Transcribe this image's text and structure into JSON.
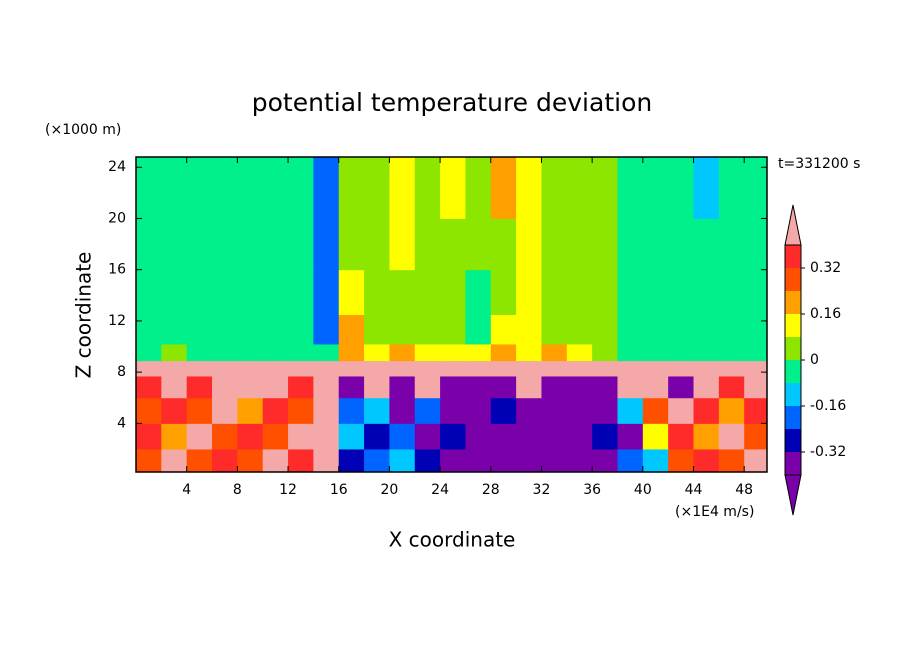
{
  "chart_data": {
    "type": "contour",
    "title": "potential temperature deviation",
    "xlabel": "X coordinate",
    "ylabel": "Z coordinate",
    "xunit": "(×1E4 m/s)",
    "yunit": "(×1000 m)",
    "annotation": "t=331200 s",
    "xlim": [
      0,
      49.8
    ],
    "ylim": [
      0.2,
      24.8
    ],
    "xticks": [
      4,
      8,
      12,
      16,
      20,
      24,
      28,
      32,
      36,
      40,
      44,
      48
    ],
    "yticks": [
      4,
      8,
      12,
      16,
      20,
      24
    ],
    "x": [
      1,
      3,
      5,
      7,
      9,
      11,
      13,
      15,
      17,
      19,
      21,
      23,
      25,
      27,
      29,
      31,
      33,
      35,
      37,
      39,
      41,
      43,
      45,
      47,
      49
    ],
    "y": [
      1,
      3,
      5,
      7,
      8.4,
      9.4,
      11,
      14,
      18,
      22
    ],
    "z": [
      [
        0.3,
        0.42,
        0.28,
        0.36,
        0.3,
        0.42,
        0.36,
        0.42,
        -0.3,
        -0.2,
        -0.1,
        -0.3,
        -0.45,
        -0.45,
        -0.45,
        -0.45,
        -0.45,
        -0.45,
        -0.45,
        -0.2,
        -0.1,
        0.3,
        0.36,
        0.28,
        0.42
      ],
      [
        0.36,
        0.2,
        0.42,
        0.3,
        0.36,
        0.28,
        0.42,
        0.42,
        -0.1,
        -0.3,
        -0.2,
        -0.45,
        -0.3,
        -0.45,
        -0.45,
        -0.45,
        -0.45,
        -0.45,
        -0.3,
        -0.45,
        0.1,
        0.36,
        0.2,
        0.42,
        0.3
      ],
      [
        0.28,
        0.36,
        0.3,
        0.42,
        0.2,
        0.36,
        0.3,
        0.42,
        -0.2,
        -0.1,
        -0.45,
        -0.2,
        -0.45,
        -0.45,
        -0.3,
        -0.45,
        -0.45,
        -0.45,
        -0.45,
        -0.1,
        0.3,
        0.42,
        0.36,
        0.2,
        0.36
      ],
      [
        0.36,
        0.42,
        0.36,
        0.42,
        0.42,
        0.42,
        0.36,
        0.42,
        -0.45,
        0.42,
        -0.45,
        0.42,
        -0.45,
        -0.45,
        -0.45,
        0.42,
        -0.45,
        -0.45,
        -0.45,
        0.42,
        0.42,
        -0.45,
        0.42,
        0.36,
        0.42
      ],
      [
        0.42,
        0.42,
        0.42,
        0.42,
        0.42,
        0.42,
        0.42,
        0.42,
        0.42,
        0.42,
        0.42,
        0.42,
        0.42,
        0.42,
        0.42,
        0.42,
        0.42,
        0.42,
        0.42,
        0.42,
        0.42,
        0.42,
        0.42,
        0.42,
        0.42
      ],
      [
        -0.04,
        0.04,
        -0.04,
        -0.04,
        -0.04,
        -0.04,
        -0.04,
        -0.04,
        0.2,
        0.12,
        0.2,
        0.12,
        0.12,
        0.12,
        0.2,
        0.12,
        0.2,
        0.12,
        0.04,
        -0.04,
        -0.04,
        -0.04,
        -0.04,
        -0.04,
        -0.04
      ],
      [
        -0.04,
        -0.04,
        -0.04,
        -0.04,
        -0.04,
        -0.04,
        -0.04,
        -0.2,
        0.2,
        0.04,
        0.04,
        0.04,
        0.04,
        -0.04,
        0.12,
        0.12,
        0.04,
        0.04,
        0.04,
        -0.04,
        -0.04,
        -0.04,
        -0.04,
        -0.04,
        -0.04
      ],
      [
        -0.04,
        -0.04,
        -0.04,
        -0.04,
        -0.04,
        -0.04,
        -0.04,
        -0.2,
        0.12,
        0.04,
        0.04,
        0.04,
        0.04,
        -0.04,
        0.04,
        0.12,
        0.04,
        0.04,
        0.04,
        -0.04,
        -0.04,
        -0.04,
        -0.04,
        -0.04,
        -0.04
      ],
      [
        -0.04,
        -0.04,
        -0.04,
        -0.04,
        -0.04,
        -0.04,
        -0.04,
        -0.2,
        0.04,
        0.04,
        0.12,
        0.04,
        0.04,
        0.04,
        0.04,
        0.12,
        0.04,
        0.04,
        0.04,
        -0.04,
        -0.04,
        -0.04,
        -0.04,
        -0.04,
        -0.04
      ],
      [
        -0.04,
        -0.04,
        -0.04,
        -0.04,
        -0.04,
        -0.04,
        -0.04,
        -0.2,
        0.04,
        0.04,
        0.12,
        0.04,
        0.12,
        0.04,
        0.2,
        0.12,
        0.04,
        0.04,
        0.04,
        -0.04,
        -0.04,
        -0.04,
        -0.12,
        -0.04,
        -0.04
      ]
    ],
    "levels": [
      -0.4,
      -0.32,
      -0.24,
      -0.16,
      -0.08,
      0,
      0.08,
      0.16,
      0.24,
      0.32,
      0.4
    ],
    "colors": [
      "#7a00aa",
      "#7a00aa",
      "#0000b4",
      "#0064ff",
      "#00c8ff",
      "#00f08c",
      "#8ce600",
      "#ffff00",
      "#ffa000",
      "#ff5000",
      "#ff2a2a",
      "#f4a8a8"
    ],
    "colorbar_ticks": [
      -0.32,
      -0.16,
      0,
      0.16,
      0.32
    ]
  }
}
